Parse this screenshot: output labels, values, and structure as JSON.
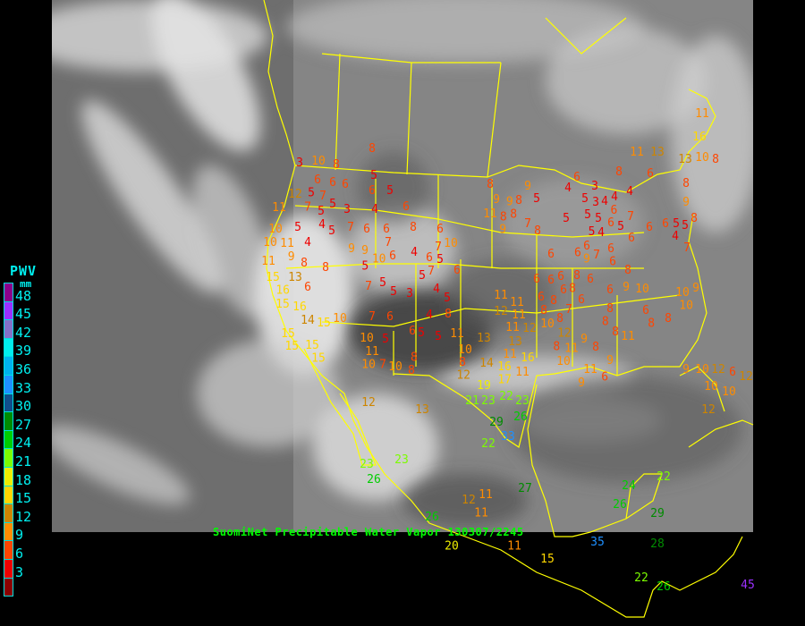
{
  "caption": "SuomiNet Precipitable Water Vapor 130307/2245",
  "legend": {
    "title": "PWV",
    "unit": "mm",
    "labels": [
      "48",
      "45",
      "42",
      "39",
      "36",
      "33",
      "30",
      "27",
      "24",
      "21",
      "18",
      "15",
      "12",
      "9",
      "6",
      "3"
    ],
    "colors": [
      "#8b008b",
      "#9b30ff",
      "#8470c8",
      "#00eeee",
      "#00b2ee",
      "#1e90ff",
      "#104e8b",
      "#008b00",
      "#00cd00",
      "#7cfc00",
      "#eeee00",
      "#ffd700",
      "#cd8500",
      "#ff8c00",
      "#ff4500",
      "#ee0000",
      "#8b0000"
    ]
  },
  "map": {
    "background": "satellite water vapor imagery",
    "border_color": "#ffff00",
    "stations": [
      8,
      3,
      10,
      8,
      5,
      6,
      6,
      6,
      6,
      5,
      5,
      7,
      12,
      7,
      5,
      3,
      4,
      6,
      5,
      4,
      5,
      5,
      7,
      6,
      6,
      7,
      8,
      6,
      11,
      10,
      10,
      11,
      9,
      4,
      8,
      8,
      9,
      9,
      10,
      5,
      6,
      4,
      6,
      5,
      7,
      10,
      6,
      11,
      15,
      13,
      16,
      15,
      16,
      6,
      14,
      15,
      10,
      15,
      15,
      15,
      15,
      7,
      5,
      5,
      3,
      5,
      4,
      7,
      5,
      7,
      6,
      4,
      8,
      6,
      5,
      5,
      5,
      10,
      11,
      10,
      7,
      10,
      8,
      8,
      8,
      11,
      10,
      13,
      12,
      14,
      16,
      19,
      17,
      11,
      11,
      16,
      21,
      23,
      22,
      23,
      26,
      29,
      33,
      22,
      23,
      23,
      26,
      26,
      27,
      24,
      22,
      26,
      29,
      28,
      35,
      15,
      22,
      26,
      45,
      12,
      13,
      12,
      11,
      11,
      11,
      20,
      8,
      9,
      9,
      8,
      11,
      8,
      9,
      8,
      9,
      5,
      7,
      8,
      6,
      4,
      3,
      5,
      3,
      4,
      4,
      6,
      6,
      5,
      5,
      4,
      5,
      5,
      5,
      7,
      4,
      6,
      8,
      6,
      6,
      5,
      5,
      8,
      4,
      7,
      6,
      6,
      6,
      8,
      6,
      7,
      6,
      9,
      8,
      6,
      6,
      6,
      6,
      6,
      6,
      8,
      6,
      9,
      10,
      10,
      9,
      10,
      6,
      8,
      8,
      8,
      8,
      10,
      6,
      8,
      7,
      6,
      8,
      8,
      8,
      11,
      9,
      8,
      9,
      10,
      11,
      6,
      9,
      11,
      8,
      11,
      16,
      13,
      10,
      8,
      8,
      9,
      11,
      13,
      9,
      10,
      12,
      6,
      10,
      10,
      12,
      12,
      11,
      12,
      11,
      11,
      11,
      12,
      12,
      13
    ]
  }
}
